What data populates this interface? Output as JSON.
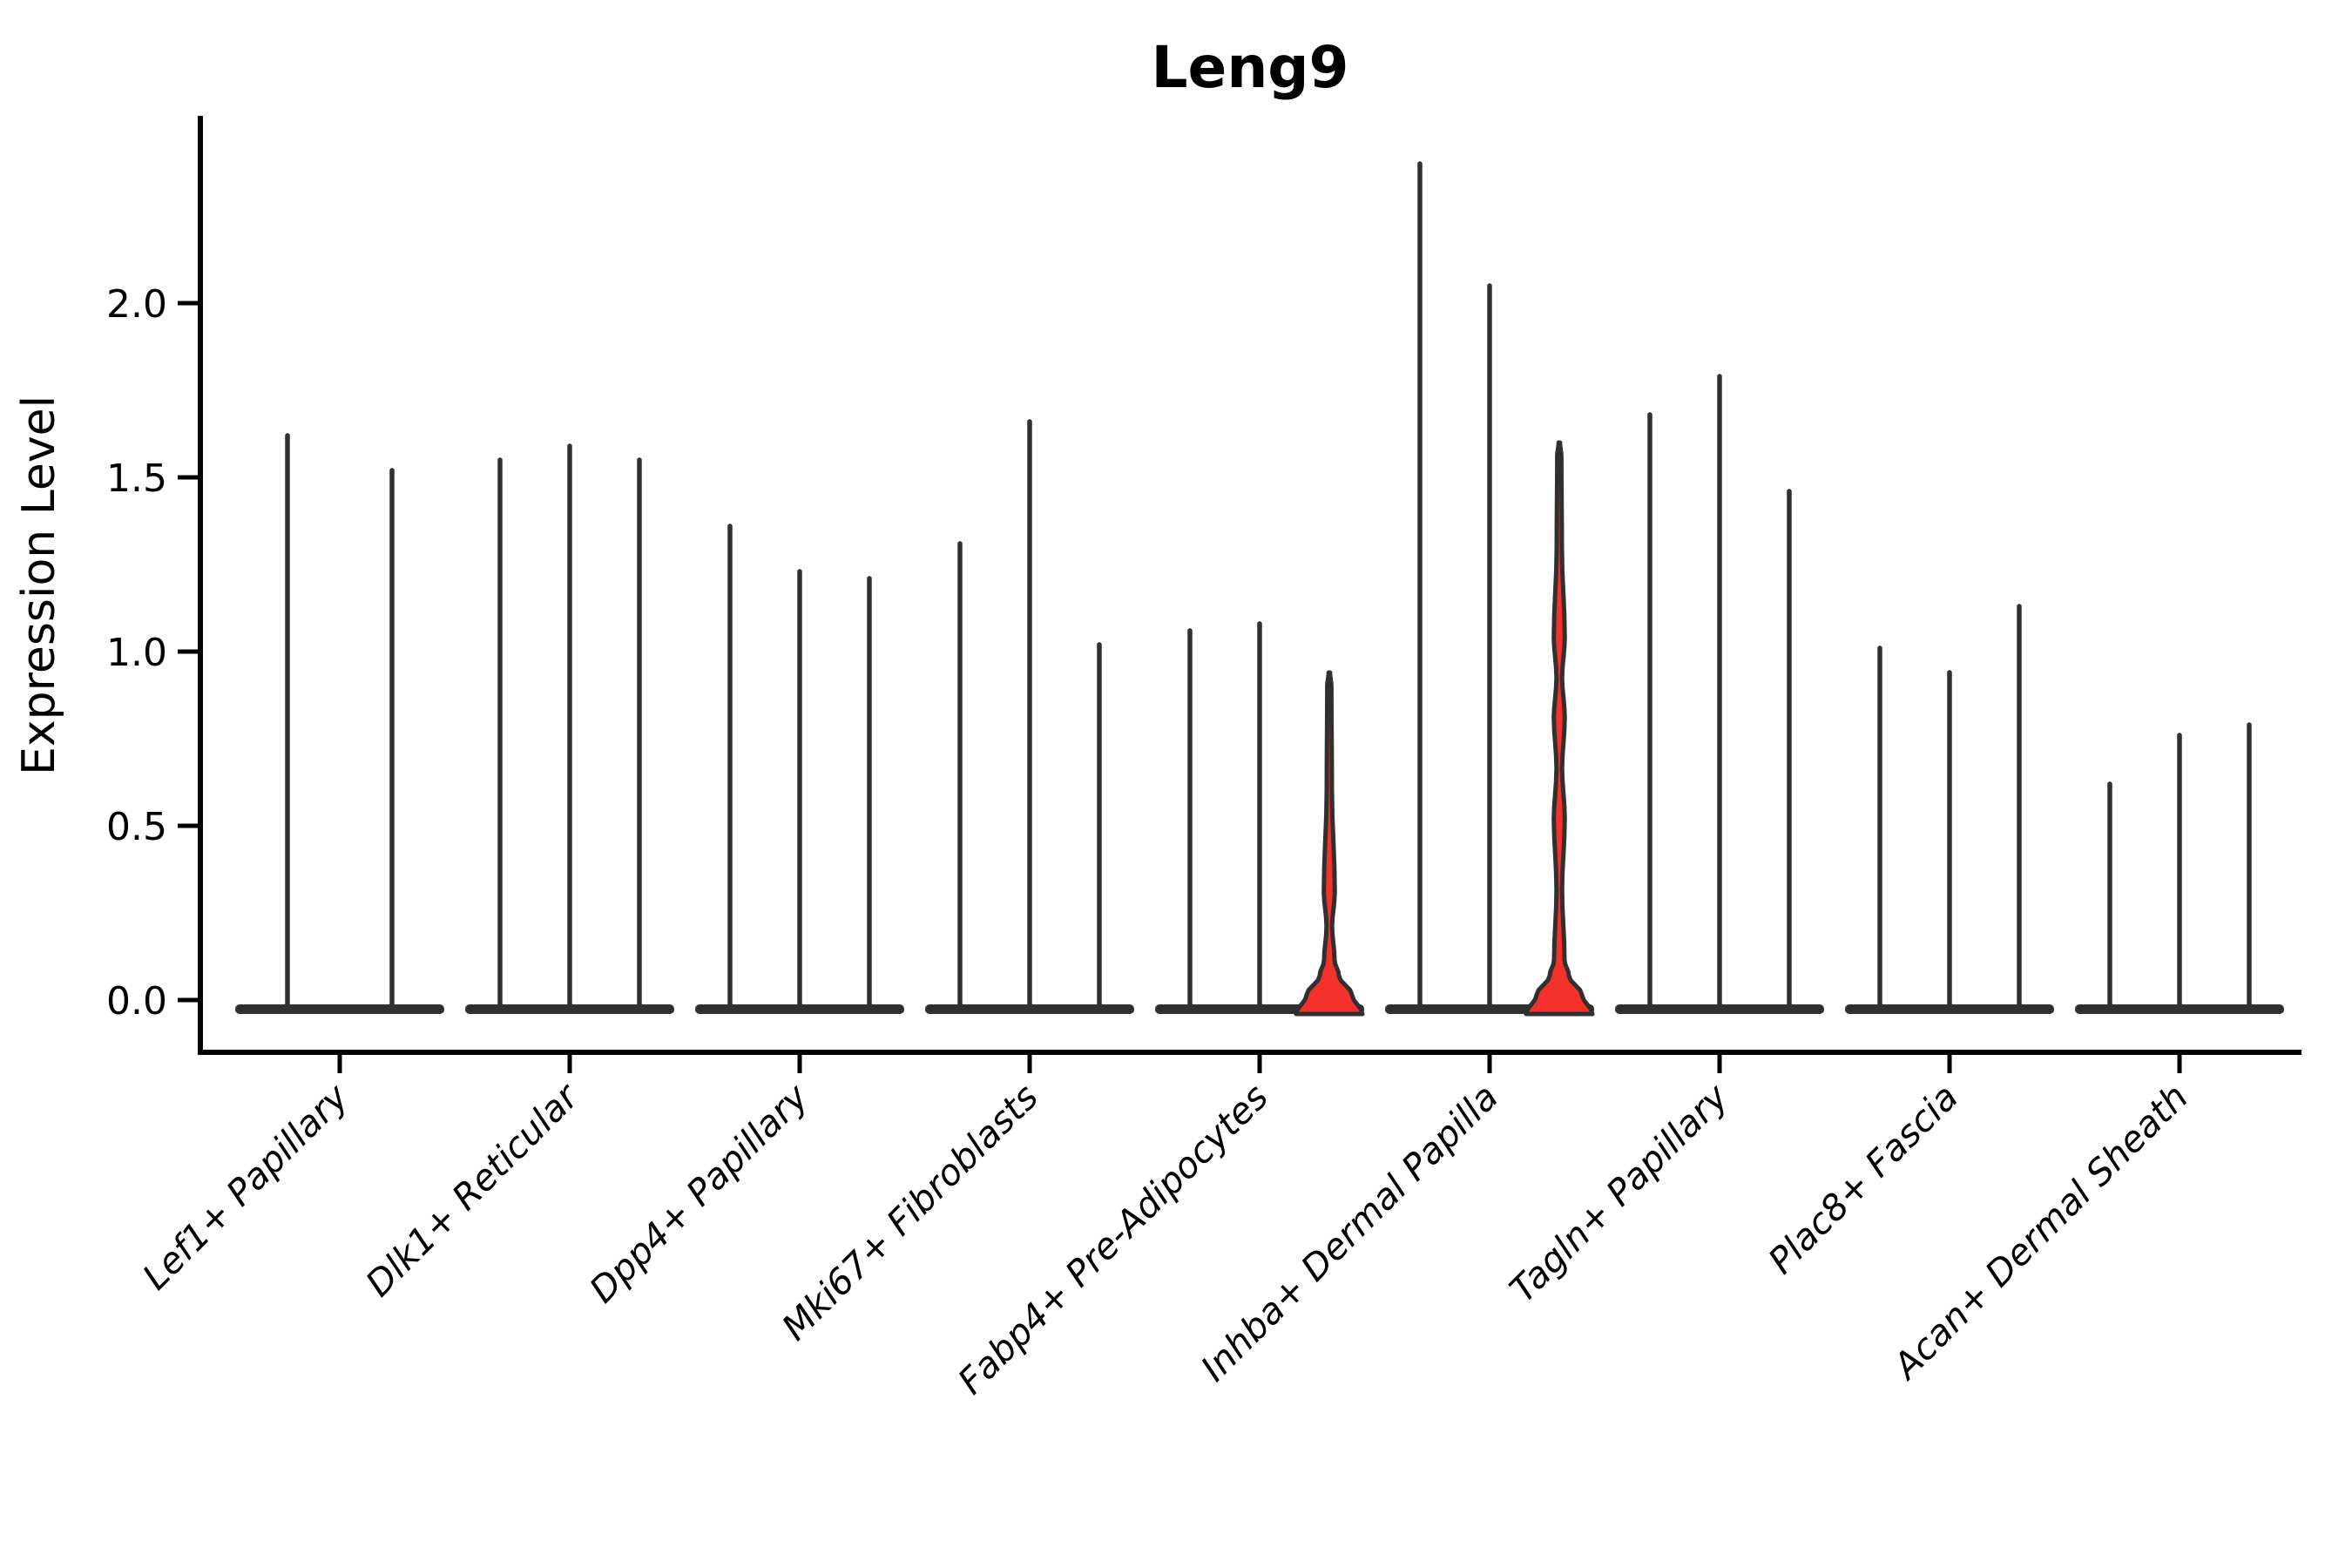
{
  "figure": {
    "title": "Leng9"
  },
  "chart_data": {
    "type": "violin",
    "title": "Leng9",
    "xlabel": "",
    "ylabel": "Expression Level",
    "ylim": [
      -0.05,
      2.53
    ],
    "grid": false,
    "legend": "none",
    "x_tick_rotation": 45,
    "yticks": [
      {
        "value": 0.0,
        "label": "0.0"
      },
      {
        "value": 0.5,
        "label": "0.5"
      },
      {
        "value": 1.0,
        "label": "1.0"
      },
      {
        "value": 1.5,
        "label": "1.5"
      },
      {
        "value": 2.0,
        "label": "2.0"
      }
    ],
    "categories": [
      "Lef1+ Papillary",
      "Dlk1+ Reticular",
      "Dpp4+ Papillary",
      "Mki67+ Fibroblasts",
      "Fabp4+ Pre-Adipocytes",
      "Inhba+ Dermal Papilla",
      "Tagln+ Papillary",
      "Plac8+ Fascia",
      "Acan+ Dermal Sheath"
    ],
    "groups": [
      {
        "category": "Lef1+ Papillary",
        "violins": [
          {
            "max": 1.62,
            "filled": false,
            "bulges": []
          },
          {
            "max": 1.52,
            "filled": false,
            "bulges": []
          }
        ]
      },
      {
        "category": "Dlk1+ Reticular",
        "violins": [
          {
            "max": 1.55,
            "filled": false,
            "bulges": []
          },
          {
            "max": 1.59,
            "filled": false,
            "bulges": []
          },
          {
            "max": 1.55,
            "filled": false,
            "bulges": []
          }
        ]
      },
      {
        "category": "Dpp4+ Papillary",
        "violins": [
          {
            "max": 1.36,
            "filled": false,
            "bulges": []
          },
          {
            "max": 1.23,
            "filled": false,
            "bulges": []
          },
          {
            "max": 1.21,
            "filled": false,
            "bulges": []
          }
        ]
      },
      {
        "category": "Mki67+ Fibroblasts",
        "violins": [
          {
            "max": 1.31,
            "filled": false,
            "bulges": []
          },
          {
            "max": 1.66,
            "filled": false,
            "bulges": []
          },
          {
            "max": 1.02,
            "filled": false,
            "bulges": []
          }
        ]
      },
      {
        "category": "Fabp4+ Pre-Adipocytes",
        "violins": [
          {
            "max": 1.06,
            "filled": false,
            "bulges": []
          },
          {
            "max": 1.08,
            "filled": false,
            "bulges": []
          },
          {
            "max": 0.94,
            "filled": true,
            "bulges": [
              0.31
            ]
          }
        ]
      },
      {
        "category": "Inhba+ Dermal Papilla",
        "violins": [
          {
            "max": 2.4,
            "filled": false,
            "bulges": []
          },
          {
            "max": 2.05,
            "filled": false,
            "bulges": []
          },
          {
            "max": 1.6,
            "filled": true,
            "bulges": [
              1.04,
              0.81,
              0.52
            ]
          }
        ]
      },
      {
        "category": "Tagln+ Papillary",
        "violins": [
          {
            "max": 1.68,
            "filled": false,
            "bulges": []
          },
          {
            "max": 1.79,
            "filled": false,
            "bulges": []
          },
          {
            "max": 1.46,
            "filled": false,
            "bulges": []
          }
        ]
      },
      {
        "category": "Plac8+ Fascia",
        "violins": [
          {
            "max": 1.01,
            "filled": false,
            "bulges": []
          },
          {
            "max": 0.94,
            "filled": false,
            "bulges": []
          },
          {
            "max": 1.13,
            "filled": false,
            "bulges": []
          }
        ]
      },
      {
        "category": "Acan+ Dermal Sheath",
        "violins": [
          {
            "max": 0.62,
            "filled": false,
            "bulges": []
          },
          {
            "max": 0.76,
            "filled": false,
            "bulges": []
          },
          {
            "max": 0.79,
            "filled": false,
            "bulges": []
          }
        ]
      }
    ],
    "colors": {
      "violin_outline": "#303030",
      "highlight_fill": "#f4312b",
      "axis": "#000000",
      "background": "#ffffff"
    }
  }
}
